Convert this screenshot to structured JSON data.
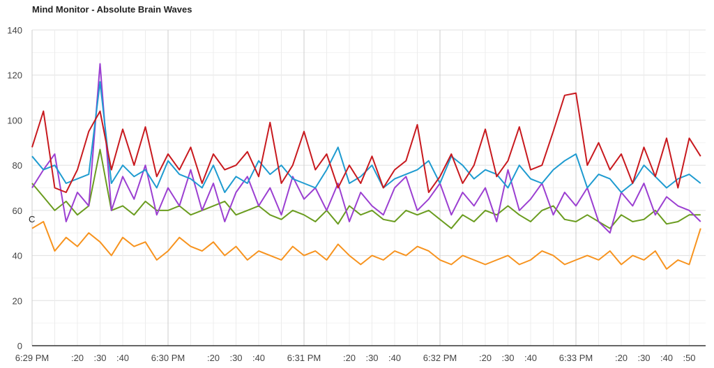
{
  "chart_data": {
    "type": "line",
    "title": "Mind Monitor - Absolute Brain Waves",
    "xlabel": "",
    "ylabel": "",
    "ylim": [
      0,
      140
    ],
    "y_ticks": [
      "0",
      "20",
      "40",
      "60",
      "80",
      "100",
      "120",
      "140"
    ],
    "x_range_seconds": [
      0,
      297
    ],
    "x_ticks": [
      {
        "t": 0,
        "label": "6:29 PM"
      },
      {
        "t": 20,
        "label": ":20"
      },
      {
        "t": 30,
        "label": ":30"
      },
      {
        "t": 40,
        "label": ":40"
      },
      {
        "t": 60,
        "label": "6:30 PM"
      },
      {
        "t": 80,
        "label": ":20"
      },
      {
        "t": 90,
        "label": ":30"
      },
      {
        "t": 100,
        "label": ":40"
      },
      {
        "t": 120,
        "label": "6:31 PM"
      },
      {
        "t": 140,
        "label": ":20"
      },
      {
        "t": 150,
        "label": ":30"
      },
      {
        "t": 160,
        "label": ":40"
      },
      {
        "t": 180,
        "label": "6:32 PM"
      },
      {
        "t": 200,
        "label": ":20"
      },
      {
        "t": 210,
        "label": ":30"
      },
      {
        "t": 220,
        "label": ":40"
      },
      {
        "t": 240,
        "label": "6:33 PM"
      },
      {
        "t": 260,
        "label": ":20"
      },
      {
        "t": 270,
        "label": ":30"
      },
      {
        "t": 280,
        "label": ":40"
      },
      {
        "t": 290,
        "label": ":50"
      }
    ],
    "grid": true,
    "sample_step_seconds": 5,
    "annotation": "C",
    "series": [
      {
        "name": "red",
        "color": "#c8191e",
        "values": [
          88,
          104,
          70,
          68,
          78,
          95,
          104,
          78,
          96,
          80,
          97,
          75,
          85,
          78,
          88,
          72,
          85,
          78,
          80,
          86,
          75,
          99,
          72,
          80,
          95,
          78,
          85,
          70,
          80,
          72,
          84,
          70,
          78,
          82,
          98,
          68,
          75,
          85,
          72,
          80,
          96,
          75,
          82,
          97,
          78,
          80,
          95,
          111,
          112,
          80,
          90,
          78,
          85,
          72,
          88,
          75,
          92,
          70,
          92,
          84
        ]
      },
      {
        "name": "blue",
        "color": "#1e9bd0",
        "values": [
          84,
          78,
          80,
          72,
          74,
          76,
          117,
          72,
          80,
          75,
          78,
          70,
          82,
          76,
          74,
          70,
          80,
          68,
          75,
          72,
          82,
          76,
          80,
          74,
          72,
          70,
          78,
          88,
          72,
          75,
          80,
          70,
          74,
          76,
          78,
          82,
          72,
          84,
          80,
          74,
          78,
          76,
          70,
          80,
          74,
          72,
          78,
          82,
          85,
          70,
          76,
          74,
          68,
          72,
          80,
          75,
          70,
          74,
          76,
          72
        ]
      },
      {
        "name": "purple",
        "color": "#9b3fd1",
        "values": [
          70,
          78,
          85,
          55,
          68,
          62,
          125,
          60,
          75,
          65,
          80,
          58,
          70,
          62,
          78,
          60,
          72,
          55,
          68,
          75,
          62,
          70,
          58,
          75,
          65,
          70,
          60,
          72,
          55,
          68,
          62,
          58,
          70,
          75,
          60,
          65,
          72,
          58,
          68,
          62,
          70,
          55,
          78,
          60,
          65,
          72,
          58,
          68,
          62,
          70,
          55,
          50,
          68,
          62,
          72,
          58,
          66,
          62,
          60,
          55
        ]
      },
      {
        "name": "green",
        "color": "#6a9c1f",
        "values": [
          72,
          66,
          60,
          64,
          58,
          62,
          87,
          60,
          62,
          58,
          64,
          60,
          60,
          62,
          58,
          60,
          62,
          64,
          58,
          60,
          62,
          58,
          56,
          60,
          58,
          55,
          60,
          54,
          62,
          58,
          60,
          56,
          55,
          60,
          58,
          60,
          56,
          52,
          58,
          55,
          60,
          58,
          62,
          58,
          55,
          60,
          62,
          56,
          55,
          58,
          55,
          52,
          58,
          55,
          56,
          60,
          54,
          55,
          58,
          58
        ]
      },
      {
        "name": "orange",
        "color": "#f7931e",
        "values": [
          52,
          55,
          42,
          48,
          44,
          50,
          46,
          40,
          48,
          44,
          46,
          38,
          42,
          48,
          44,
          42,
          46,
          40,
          44,
          38,
          42,
          40,
          38,
          44,
          40,
          42,
          38,
          45,
          40,
          36,
          40,
          38,
          42,
          40,
          44,
          42,
          38,
          36,
          40,
          38,
          36,
          38,
          40,
          36,
          38,
          42,
          40,
          36,
          38,
          40,
          38,
          42,
          36,
          40,
          38,
          42,
          34,
          38,
          36,
          52
        ]
      }
    ]
  }
}
